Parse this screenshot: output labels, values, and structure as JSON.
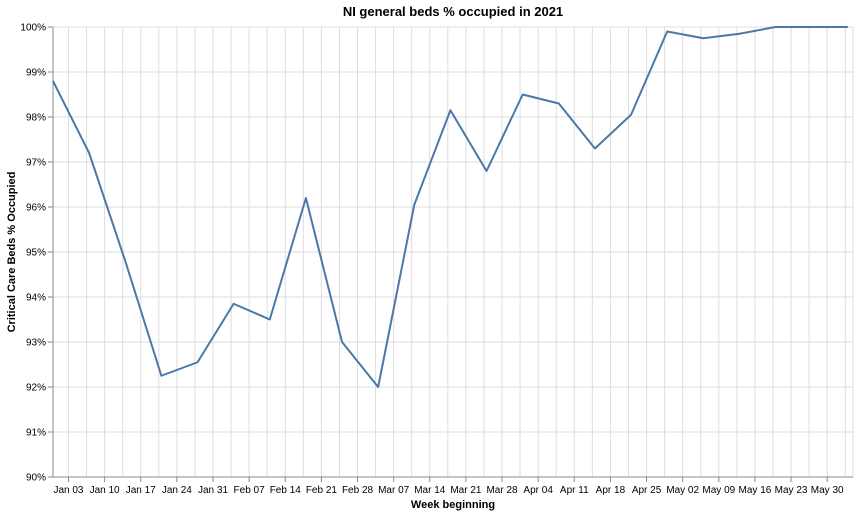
{
  "chart_data": {
    "type": "line",
    "title": "NI general beds % occupied in 2021",
    "xlabel": "Week beginning",
    "ylabel": "Critical Care Beds % Occupied",
    "ylim": [
      90,
      100
    ],
    "y_ticks": [
      "90%",
      "91%",
      "92%",
      "93%",
      "94%",
      "95%",
      "96%",
      "97%",
      "98%",
      "99%",
      "100%"
    ],
    "x_ticks": [
      "Jan 03",
      "Jan 10",
      "Jan 17",
      "Jan 24",
      "Jan 31",
      "Feb 07",
      "Feb 14",
      "Feb 21",
      "Feb 28",
      "Mar 07",
      "Mar 14",
      "Mar 21",
      "Mar 28",
      "Apr 04",
      "Apr 11",
      "Apr 18",
      "Apr 25",
      "May 02",
      "May 09",
      "May 16",
      "May 23",
      "May 30"
    ],
    "x_range": [
      "2020-12-31",
      "2021-06-04"
    ],
    "grid": true,
    "line_color": "#4c78a8",
    "series": [
      {
        "x": [
          "2020-12-31",
          "2021-01-07",
          "2021-01-14",
          "2021-01-21",
          "2021-01-28",
          "2021-02-04",
          "2021-02-11",
          "2021-02-18",
          "2021-02-25",
          "2021-03-04",
          "2021-03-11",
          "2021-03-18",
          "2021-03-25",
          "2021-04-01",
          "2021-04-08",
          "2021-04-15",
          "2021-04-22",
          "2021-04-29",
          "2021-05-06",
          "2021-05-13",
          "2021-05-20",
          "2021-05-27",
          "2021-06-03"
        ],
        "values": [
          98.8,
          97.2,
          94.8,
          92.25,
          92.55,
          93.85,
          93.5,
          96.2,
          93.0,
          92.0,
          96.05,
          98.15,
          96.8,
          98.5,
          98.3,
          97.3,
          98.05,
          99.9,
          99.75,
          99.85,
          100.0,
          100.0,
          100.0
        ]
      }
    ]
  }
}
